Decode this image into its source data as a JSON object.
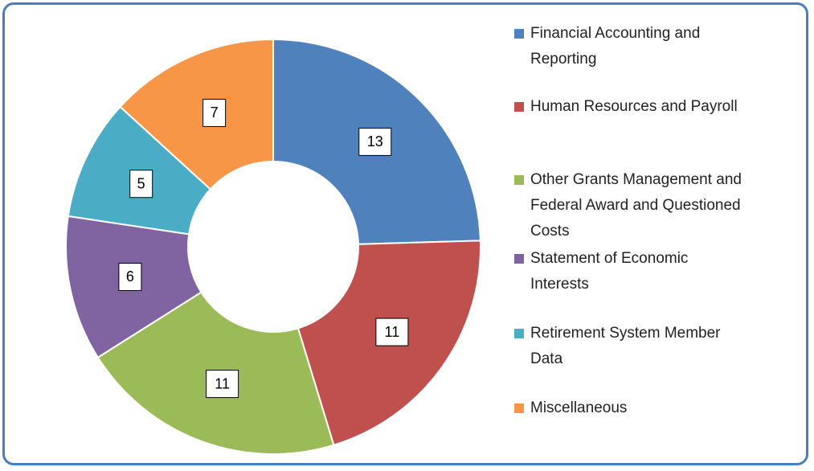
{
  "chart_data": {
    "type": "donut",
    "categories": [
      "Financial Accounting and Reporting",
      "Human Resources and Payroll",
      "Other Grants Management and Federal Award and Questioned Costs",
      "Statement of Economic Interests",
      "Retirement System Member Data",
      "Miscellaneous"
    ],
    "values": [
      13,
      11,
      11,
      6,
      5,
      7
    ],
    "colors": [
      "#4f81bd",
      "#c0504d",
      "#9bbb59",
      "#8064a2",
      "#4bacc6",
      "#f79646"
    ],
    "legend": "right"
  }
}
